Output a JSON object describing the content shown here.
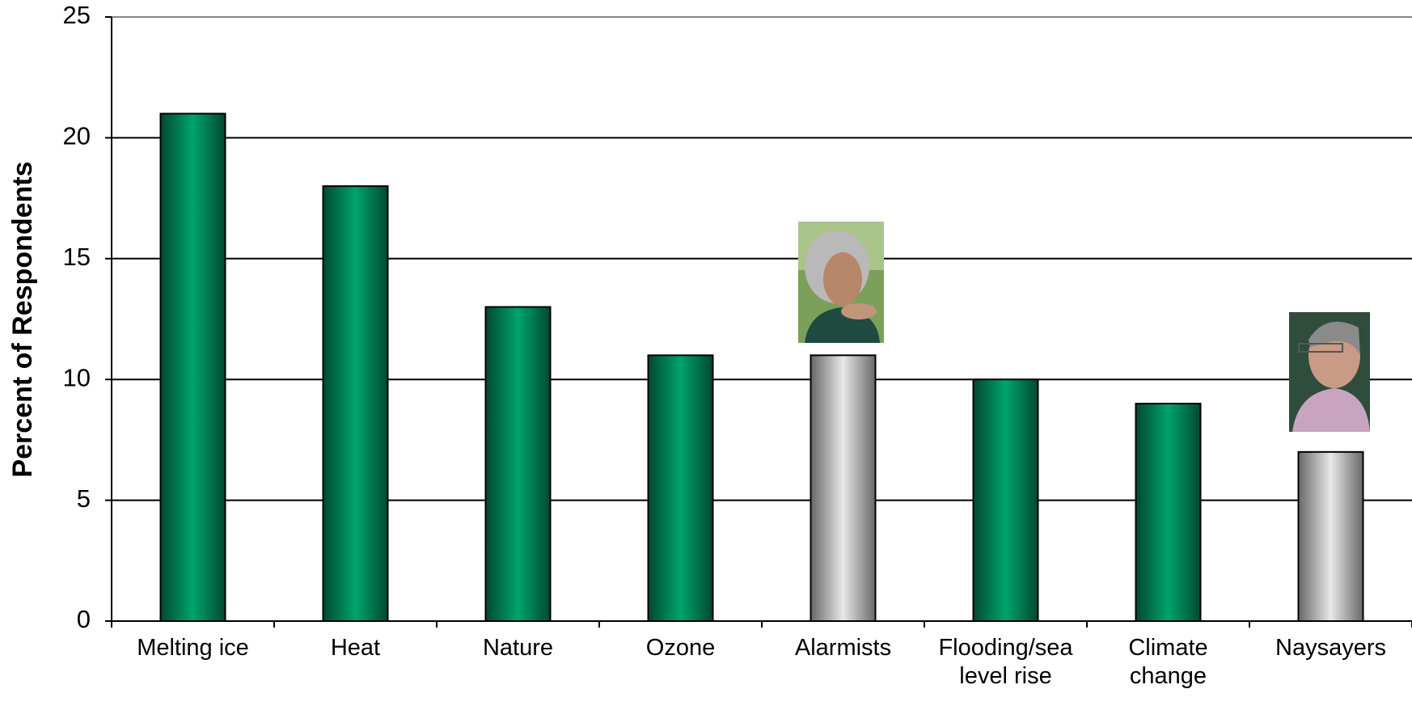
{
  "chart_data": {
    "type": "bar",
    "y_label": "Percent of Respondents",
    "categories": [
      "Melting ice",
      "Heat",
      "Nature",
      "Ozone",
      "Alarmists",
      "Flooding/sea level rise",
      "Climate change",
      "Naysayers"
    ],
    "values": [
      21,
      18,
      13,
      11,
      11,
      10,
      9,
      7
    ],
    "colors": [
      "#00a36c",
      "#00a36c",
      "#00a36c",
      "#00a36c",
      "#e8e8e8",
      "#00a36c",
      "#00a36c",
      "#e8e8e8"
    ],
    "ylim": [
      0,
      25
    ],
    "yticks": [
      0,
      5,
      10,
      15,
      20,
      25
    ],
    "grid": true
  }
}
